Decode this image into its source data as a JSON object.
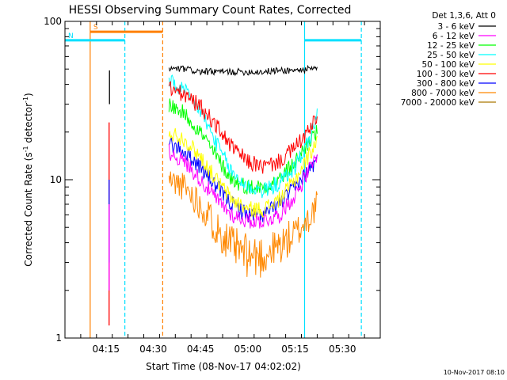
{
  "chart_data": {
    "type": "line",
    "title": "HESSI Observing Summary Count Rates, Corrected",
    "xlabel": "Start Time (08-Nov-17 04:02:02)",
    "ylabel": "Corrected Count Rate (s⁻¹ detector⁻¹)",
    "ylabel_main": "Corrected Count Rate (s",
    "ylabel_sup1": "-1",
    "ylabel_mid": " detector",
    "ylabel_sup2": "-1",
    "ylabel_end": ")",
    "yscale": "log",
    "ylim": [
      1,
      100
    ],
    "xlim": [
      "04:02",
      "05:42"
    ],
    "xticks": [
      "04:15",
      "04:30",
      "04:45",
      "05:00",
      "05:15",
      "05:30"
    ],
    "yticks": [
      "1",
      "10",
      "100"
    ],
    "grid": false,
    "legend_position": "right",
    "legend_title": "Det 1,3,6, Att 0",
    "series": [
      {
        "name": "3 - 6 keV",
        "color": "#000000",
        "x": [
          "04:35",
          "04:40",
          "04:45",
          "04:50",
          "04:55",
          "05:00",
          "05:05",
          "05:10",
          "05:15",
          "05:20",
          "05:22"
        ],
        "values": [
          50,
          50,
          48,
          48,
          48,
          48,
          48,
          49,
          49,
          50,
          50
        ]
      },
      {
        "name": "6 - 12 keV",
        "color": "#ff00ff",
        "x": [
          "04:35",
          "04:40",
          "04:45",
          "04:50",
          "04:55",
          "05:00",
          "05:05",
          "05:10",
          "05:15",
          "05:20",
          "05:22"
        ],
        "values": [
          15,
          13,
          10,
          7.5,
          6.0,
          5.5,
          5.5,
          6.0,
          8.0,
          12,
          14
        ]
      },
      {
        "name": "12 - 25 keV",
        "color": "#00ff00",
        "x": [
          "04:35",
          "04:40",
          "04:45",
          "04:50",
          "04:55",
          "05:00",
          "05:05",
          "05:10",
          "05:15",
          "05:20",
          "05:22"
        ],
        "values": [
          30,
          26,
          20,
          14,
          10,
          9.0,
          9.0,
          10,
          13,
          18,
          20
        ]
      },
      {
        "name": "25 - 50 keV",
        "color": "#00ffff",
        "x": [
          "04:35",
          "04:40",
          "04:45",
          "04:50",
          "04:55",
          "05:00",
          "05:05",
          "05:10",
          "05:15",
          "05:20",
          "05:22"
        ],
        "values": [
          42,
          36,
          27,
          17,
          11,
          9.0,
          8.5,
          9.5,
          12,
          19,
          26
        ]
      },
      {
        "name": "50 - 100 keV",
        "color": "#ffff00",
        "x": [
          "04:35",
          "04:40",
          "04:45",
          "04:50",
          "04:55",
          "05:00",
          "05:05",
          "05:10",
          "05:15",
          "05:20",
          "05:22"
        ],
        "values": [
          20,
          18,
          14,
          10,
          7.5,
          6.5,
          6.5,
          7.5,
          10,
          15,
          18
        ]
      },
      {
        "name": "100 - 300 keV",
        "color": "#ff0000",
        "x": [
          "04:35",
          "04:40",
          "04:45",
          "04:50",
          "04:55",
          "05:00",
          "05:05",
          "05:10",
          "05:15",
          "05:20",
          "05:22"
        ],
        "values": [
          38,
          34,
          29,
          22,
          16,
          13,
          12,
          13,
          16,
          21,
          25
        ]
      },
      {
        "name": "300 - 800 keV",
        "color": "#0000ff",
        "x": [
          "04:35",
          "04:40",
          "04:45",
          "04:50",
          "04:55",
          "05:00",
          "05:05",
          "05:10",
          "05:15",
          "05:20",
          "05:22"
        ],
        "values": [
          17,
          15,
          12,
          9.0,
          7.0,
          6.0,
          6.0,
          7.0,
          9.0,
          12,
          13
        ]
      },
      {
        "name": "800 - 7000 keV",
        "color": "#ff8800",
        "x": [
          "04:35",
          "04:40",
          "04:45",
          "04:50",
          "04:55",
          "05:00",
          "05:05",
          "05:10",
          "05:15",
          "05:20",
          "05:22"
        ],
        "values": [
          10,
          9.0,
          7.0,
          5.0,
          3.8,
          3.3,
          3.3,
          3.8,
          4.5,
          6.0,
          7.0
        ]
      },
      {
        "name": "7000 - 20000 keV",
        "color": "#aa7700",
        "x": [],
        "values": []
      }
    ],
    "observing_flags": [
      {
        "label": "S",
        "color": "#ff8000",
        "start": "04:10",
        "end": "04:33",
        "level": 86
      },
      {
        "label": "N",
        "color": "#00e0ff",
        "start": "04:02",
        "end": "04:21",
        "level": 76
      },
      {
        "label": "",
        "color": "#00e0ff",
        "start": "05:18",
        "end": "05:36",
        "level": 76
      }
    ],
    "vertical_markers": [
      {
        "x": "04:10",
        "color": "#ff8000",
        "style": "solid"
      },
      {
        "x": "04:21",
        "color": "#00e0ff",
        "style": "dashed"
      },
      {
        "x": "04:33",
        "color": "#ff8000",
        "style": "dashed"
      },
      {
        "x": "05:18",
        "color": "#00e0ff",
        "style": "solid"
      },
      {
        "x": "05:36",
        "color": "#00e0ff",
        "style": "dashed"
      }
    ]
  },
  "footer_timestamp": "10-Nov-2017 08:10"
}
